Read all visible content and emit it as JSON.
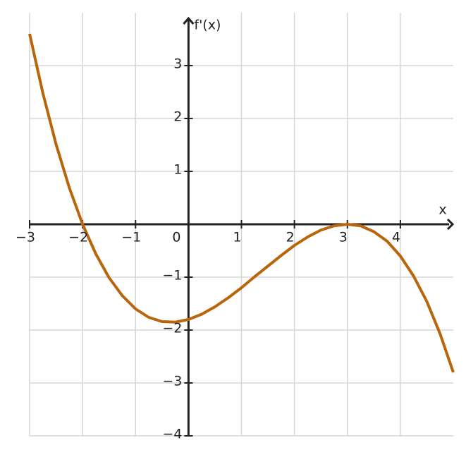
{
  "chart_data": {
    "type": "line",
    "x_label": "x",
    "y_label": "f'(x)",
    "xlim": [
      -3,
      5
    ],
    "ylim": [
      -4,
      4
    ],
    "xticks": [
      {
        "value": -3,
        "label": "−3"
      },
      {
        "value": -2,
        "label": "−2"
      },
      {
        "value": -1,
        "label": "−1"
      },
      0,
      1,
      2,
      3,
      4
    ],
    "yticks": [
      {
        "value": -4,
        "label": "−4"
      },
      {
        "value": -3,
        "label": "−3"
      },
      {
        "value": -2,
        "label": "−2"
      },
      {
        "value": -1,
        "label": "−1"
      },
      1,
      2,
      3
    ],
    "grid": true,
    "x": [
      -3,
      -2.75,
      -2.5,
      -2.25,
      -2,
      -1.75,
      -1.5,
      -1.25,
      -1,
      -0.75,
      -0.5,
      -0.25,
      0,
      0.25,
      0.5,
      0.75,
      1,
      1.25,
      1.5,
      1.75,
      2,
      2.25,
      2.5,
      2.75,
      3,
      3.25,
      3.5,
      3.75,
      4,
      4.25,
      4.5,
      4.75,
      5
    ],
    "series": [
      {
        "color": "#b8650c",
        "values": [
          3.6,
          2.48,
          1.51,
          0.69,
          0,
          -0.56,
          -1.01,
          -1.35,
          -1.6,
          -1.76,
          -1.84,
          -1.85,
          -1.8,
          -1.7,
          -1.56,
          -1.39,
          -1.2,
          -0.99,
          -0.79,
          -0.59,
          -0.4,
          -0.24,
          -0.11,
          -0.03,
          0,
          -0.03,
          -0.14,
          -0.32,
          -0.6,
          -0.98,
          -1.46,
          -2.07,
          -2.8
        ]
      }
    ]
  }
}
